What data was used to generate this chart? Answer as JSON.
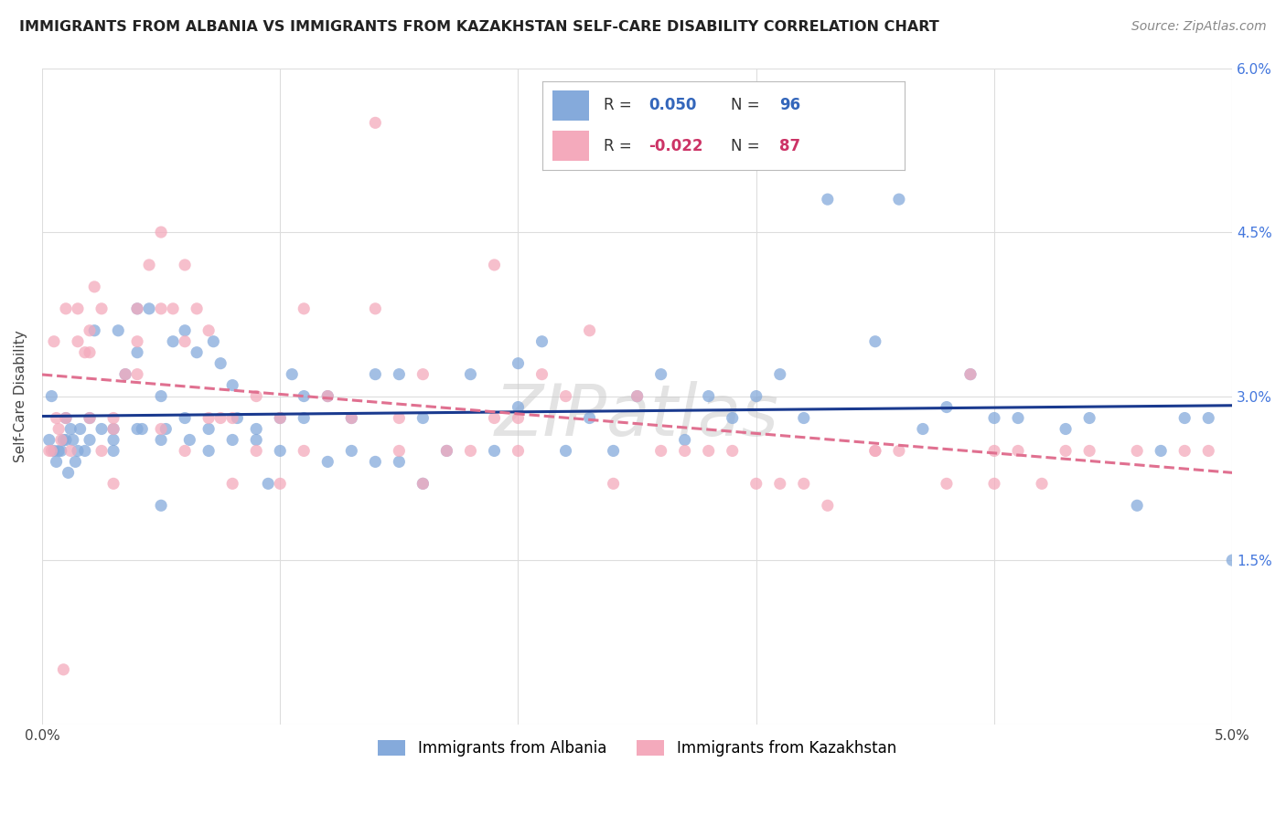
{
  "title": "IMMIGRANTS FROM ALBANIA VS IMMIGRANTS FROM KAZAKHSTAN SELF-CARE DISABILITY CORRELATION CHART",
  "source": "Source: ZipAtlas.com",
  "xlabel_label": "Immigrants from Albania",
  "ylabel_label": "Self-Care Disability",
  "xlabel2_label": "Immigrants from Kazakhstan",
  "xlim": [
    0.0,
    0.05
  ],
  "ylim": [
    0.0,
    0.06
  ],
  "R_albania": 0.05,
  "N_albania": 96,
  "R_kazakhstan": -0.022,
  "N_kazakhstan": 87,
  "color_albania": "#85AADB",
  "color_kazakhstan": "#F4AABC",
  "color_albania_line": "#1A3A8F",
  "color_kazakhstan_line": "#E07090",
  "watermark": "ZIPatlas",
  "albania_x": [
    0.0003,
    0.0005,
    0.0006,
    0.0007,
    0.0008,
    0.001,
    0.001,
    0.0012,
    0.0013,
    0.0015,
    0.0016,
    0.0018,
    0.002,
    0.002,
    0.0022,
    0.0025,
    0.003,
    0.003,
    0.003,
    0.0032,
    0.0035,
    0.004,
    0.004,
    0.004,
    0.0042,
    0.0045,
    0.005,
    0.005,
    0.005,
    0.0052,
    0.0055,
    0.006,
    0.006,
    0.0062,
    0.0065,
    0.007,
    0.007,
    0.0072,
    0.0075,
    0.008,
    0.008,
    0.0082,
    0.009,
    0.009,
    0.0095,
    0.01,
    0.01,
    0.0105,
    0.011,
    0.011,
    0.012,
    0.012,
    0.013,
    0.013,
    0.014,
    0.014,
    0.015,
    0.015,
    0.016,
    0.016,
    0.017,
    0.018,
    0.019,
    0.02,
    0.02,
    0.021,
    0.022,
    0.023,
    0.024,
    0.025,
    0.026,
    0.027,
    0.028,
    0.029,
    0.03,
    0.031,
    0.032,
    0.033,
    0.035,
    0.036,
    0.037,
    0.038,
    0.039,
    0.04,
    0.041,
    0.043,
    0.044,
    0.046,
    0.047,
    0.048,
    0.049,
    0.05,
    0.0004,
    0.0009,
    0.0011,
    0.0014
  ],
  "albania_y": [
    0.026,
    0.025,
    0.024,
    0.025,
    0.025,
    0.028,
    0.026,
    0.027,
    0.026,
    0.025,
    0.027,
    0.025,
    0.028,
    0.026,
    0.036,
    0.027,
    0.027,
    0.026,
    0.025,
    0.036,
    0.032,
    0.038,
    0.034,
    0.027,
    0.027,
    0.038,
    0.03,
    0.026,
    0.02,
    0.027,
    0.035,
    0.036,
    0.028,
    0.026,
    0.034,
    0.025,
    0.027,
    0.035,
    0.033,
    0.031,
    0.026,
    0.028,
    0.027,
    0.026,
    0.022,
    0.028,
    0.025,
    0.032,
    0.028,
    0.03,
    0.024,
    0.03,
    0.025,
    0.028,
    0.024,
    0.032,
    0.024,
    0.032,
    0.022,
    0.028,
    0.025,
    0.032,
    0.025,
    0.033,
    0.029,
    0.035,
    0.025,
    0.028,
    0.025,
    0.03,
    0.032,
    0.026,
    0.03,
    0.028,
    0.03,
    0.032,
    0.028,
    0.048,
    0.035,
    0.048,
    0.027,
    0.029,
    0.032,
    0.028,
    0.028,
    0.027,
    0.028,
    0.02,
    0.025,
    0.028,
    0.028,
    0.015,
    0.03,
    0.026,
    0.023,
    0.024
  ],
  "kazakhstan_x": [
    0.0003,
    0.0005,
    0.0007,
    0.0008,
    0.001,
    0.001,
    0.0012,
    0.0015,
    0.0015,
    0.0018,
    0.002,
    0.002,
    0.002,
    0.0022,
    0.0025,
    0.0025,
    0.003,
    0.003,
    0.003,
    0.0035,
    0.004,
    0.004,
    0.004,
    0.0045,
    0.005,
    0.005,
    0.005,
    0.0055,
    0.006,
    0.006,
    0.006,
    0.0065,
    0.007,
    0.007,
    0.0075,
    0.008,
    0.008,
    0.009,
    0.009,
    0.01,
    0.01,
    0.011,
    0.011,
    0.012,
    0.013,
    0.014,
    0.014,
    0.015,
    0.015,
    0.016,
    0.016,
    0.017,
    0.018,
    0.019,
    0.019,
    0.02,
    0.02,
    0.021,
    0.022,
    0.023,
    0.024,
    0.025,
    0.026,
    0.027,
    0.028,
    0.029,
    0.03,
    0.031,
    0.032,
    0.033,
    0.035,
    0.035,
    0.036,
    0.038,
    0.039,
    0.04,
    0.04,
    0.041,
    0.042,
    0.043,
    0.044,
    0.046,
    0.048,
    0.049,
    0.0004,
    0.0006,
    0.0009
  ],
  "kazakhstan_y": [
    0.025,
    0.035,
    0.027,
    0.026,
    0.038,
    0.028,
    0.025,
    0.038,
    0.035,
    0.034,
    0.036,
    0.034,
    0.028,
    0.04,
    0.038,
    0.025,
    0.028,
    0.022,
    0.027,
    0.032,
    0.035,
    0.032,
    0.038,
    0.042,
    0.038,
    0.045,
    0.027,
    0.038,
    0.042,
    0.035,
    0.025,
    0.038,
    0.028,
    0.036,
    0.028,
    0.028,
    0.022,
    0.03,
    0.025,
    0.028,
    0.022,
    0.038,
    0.025,
    0.03,
    0.028,
    0.055,
    0.038,
    0.028,
    0.025,
    0.032,
    0.022,
    0.025,
    0.025,
    0.042,
    0.028,
    0.028,
    0.025,
    0.032,
    0.03,
    0.036,
    0.022,
    0.03,
    0.025,
    0.025,
    0.025,
    0.025,
    0.022,
    0.022,
    0.022,
    0.02,
    0.025,
    0.025,
    0.025,
    0.022,
    0.032,
    0.022,
    0.025,
    0.025,
    0.022,
    0.025,
    0.025,
    0.025,
    0.025,
    0.025,
    0.025,
    0.028,
    0.005
  ]
}
